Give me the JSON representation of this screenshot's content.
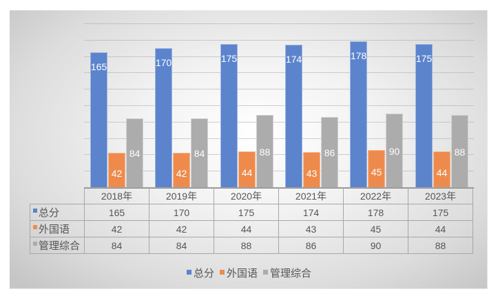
{
  "chart_data": {
    "type": "bar",
    "title": "",
    "xlabel": "",
    "ylabel": "",
    "ylim": [
      0,
      200
    ],
    "ytick_step": 20,
    "grid": true,
    "y_axis_visible": false,
    "data_table": true,
    "legend_position": "bottom",
    "categories": [
      "2018年",
      "2019年",
      "2020年",
      "2021年",
      "2022年",
      "2023年"
    ],
    "series": [
      {
        "name": "总分",
        "color": "#5b84cc",
        "values": [
          165,
          170,
          175,
          174,
          178,
          175
        ]
      },
      {
        "name": "外国语",
        "color": "#ee8b4c",
        "values": [
          42,
          42,
          44,
          43,
          45,
          44
        ]
      },
      {
        "name": "管理综合",
        "color": "#acacac",
        "values": [
          84,
          84,
          88,
          86,
          90,
          88
        ]
      }
    ]
  },
  "table": {
    "headers": [
      "2018年",
      "2019年",
      "2020年",
      "2021年",
      "2022年",
      "2023年"
    ],
    "rows": [
      {
        "label": "总分",
        "cells": [
          "165",
          "170",
          "175",
          "174",
          "178",
          "175"
        ]
      },
      {
        "label": "外国语",
        "cells": [
          "42",
          "42",
          "44",
          "43",
          "45",
          "44"
        ]
      },
      {
        "label": "管理综合",
        "cells": [
          "84",
          "84",
          "88",
          "86",
          "90",
          "88"
        ]
      }
    ]
  },
  "legend": {
    "items": [
      {
        "label": "总分",
        "color": "#5b84cc"
      },
      {
        "label": "外国语",
        "color": "#ee8b4c"
      },
      {
        "label": "管理综合",
        "color": "#acacac"
      }
    ]
  }
}
